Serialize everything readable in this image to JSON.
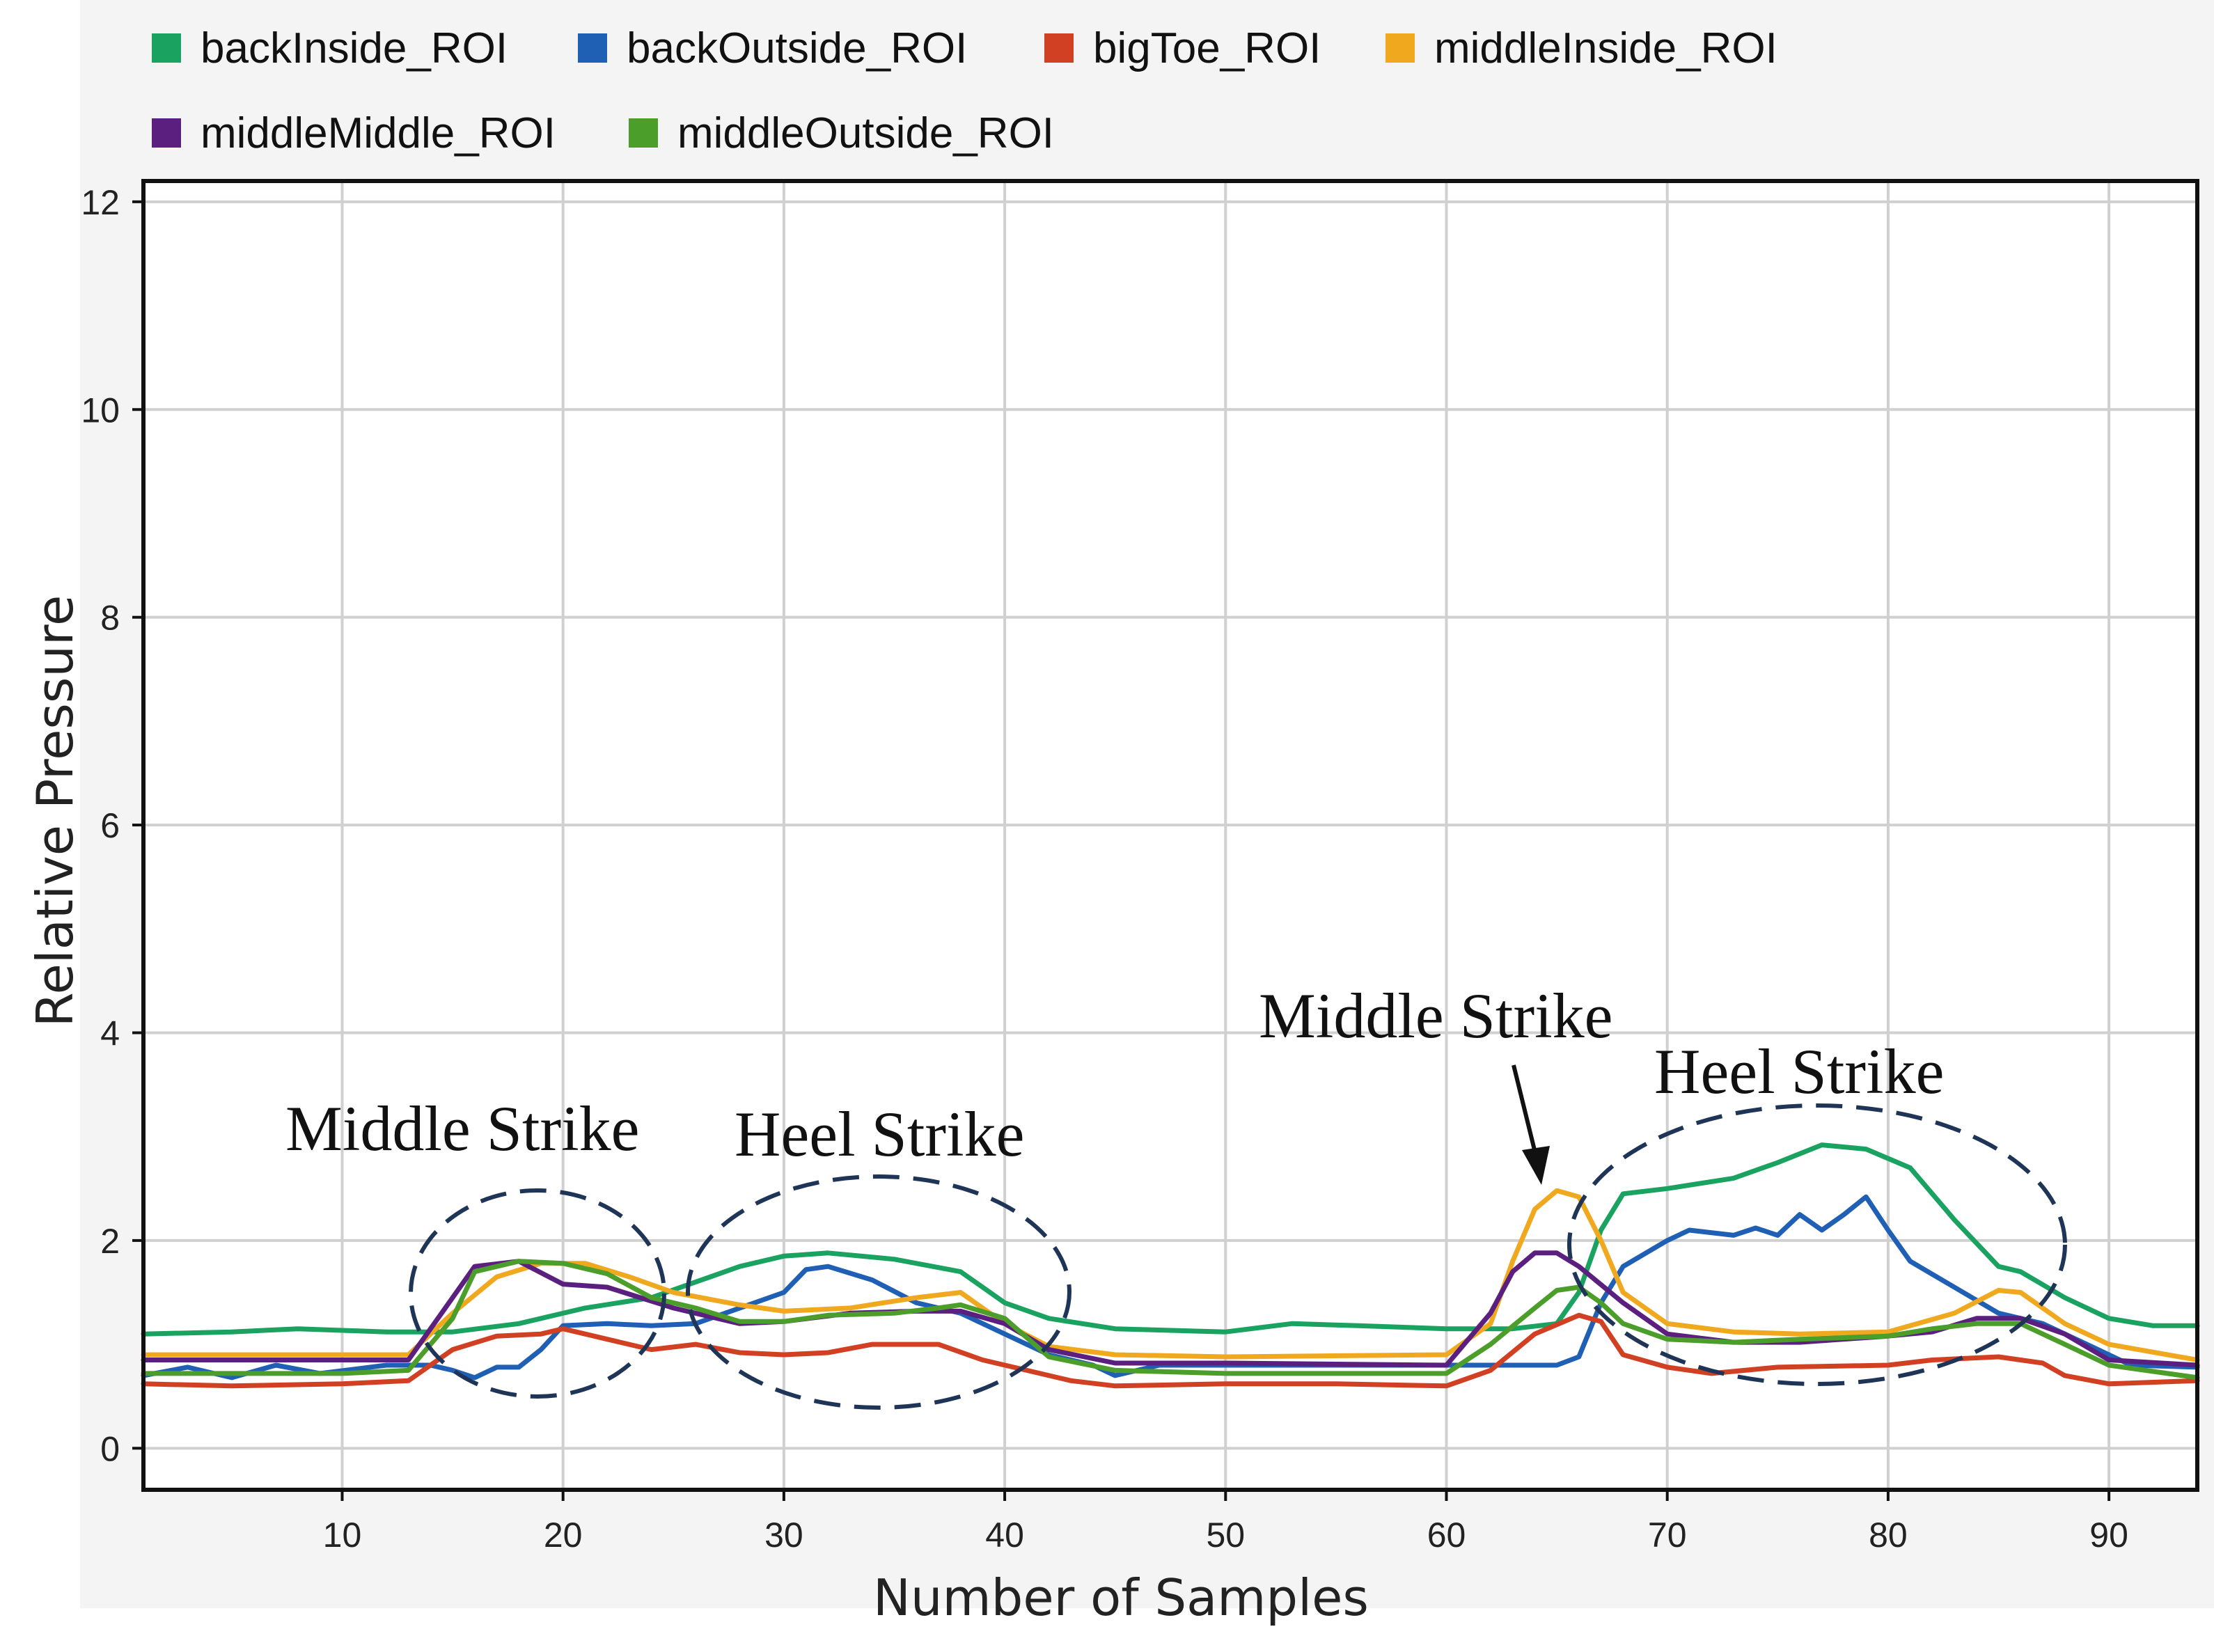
{
  "chart_data": {
    "type": "line",
    "title": "",
    "xlabel": "Number of Samples",
    "ylabel": "Relative Pressure",
    "xlim": [
      1,
      94
    ],
    "ylim": [
      -0.4,
      12.2
    ],
    "xticks": [
      10,
      20,
      30,
      40,
      50,
      60,
      70,
      80,
      90
    ],
    "yticks": [
      0,
      2,
      4,
      6,
      8,
      10,
      12
    ],
    "xtick_labels": [
      "10",
      "20",
      "30",
      "40",
      "50",
      "60",
      "70",
      "80",
      "90"
    ],
    "ytick_labels": [
      "0",
      "2",
      "4",
      "6",
      "8",
      "10",
      "12"
    ],
    "grid": true,
    "legend_position": "top",
    "series": [
      {
        "name": "backInside_ROI",
        "color": "#1aa260",
        "points": [
          [
            1,
            1.1
          ],
          [
            5,
            1.12
          ],
          [
            8,
            1.15
          ],
          [
            12,
            1.12
          ],
          [
            15,
            1.12
          ],
          [
            18,
            1.2
          ],
          [
            21,
            1.35
          ],
          [
            24,
            1.45
          ],
          [
            26,
            1.6
          ],
          [
            28,
            1.75
          ],
          [
            30,
            1.85
          ],
          [
            32,
            1.88
          ],
          [
            35,
            1.82
          ],
          [
            38,
            1.7
          ],
          [
            40,
            1.4
          ],
          [
            42,
            1.25
          ],
          [
            45,
            1.15
          ],
          [
            50,
            1.12
          ],
          [
            53,
            1.2
          ],
          [
            56,
            1.18
          ],
          [
            60,
            1.15
          ],
          [
            63,
            1.15
          ],
          [
            65,
            1.2
          ],
          [
            66,
            1.5
          ],
          [
            67,
            2.1
          ],
          [
            68,
            2.45
          ],
          [
            70,
            2.5
          ],
          [
            73,
            2.6
          ],
          [
            75,
            2.75
          ],
          [
            77,
            2.92
          ],
          [
            79,
            2.88
          ],
          [
            81,
            2.7
          ],
          [
            83,
            2.2
          ],
          [
            85,
            1.75
          ],
          [
            86,
            1.7
          ],
          [
            88,
            1.45
          ],
          [
            90,
            1.25
          ],
          [
            92,
            1.18
          ],
          [
            94,
            1.18
          ]
        ]
      },
      {
        "name": "backOutside_ROI",
        "color": "#1f5fb4",
        "points": [
          [
            1,
            0.7
          ],
          [
            3,
            0.78
          ],
          [
            5,
            0.68
          ],
          [
            7,
            0.8
          ],
          [
            9,
            0.72
          ],
          [
            12,
            0.8
          ],
          [
            14,
            0.8
          ],
          [
            15,
            0.75
          ],
          [
            16,
            0.68
          ],
          [
            17,
            0.78
          ],
          [
            18,
            0.78
          ],
          [
            19,
            0.95
          ],
          [
            20,
            1.18
          ],
          [
            22,
            1.2
          ],
          [
            24,
            1.18
          ],
          [
            26,
            1.2
          ],
          [
            28,
            1.35
          ],
          [
            30,
            1.5
          ],
          [
            31,
            1.72
          ],
          [
            32,
            1.75
          ],
          [
            34,
            1.62
          ],
          [
            36,
            1.4
          ],
          [
            38,
            1.3
          ],
          [
            40,
            1.1
          ],
          [
            42,
            0.9
          ],
          [
            44,
            0.8
          ],
          [
            45,
            0.7
          ],
          [
            47,
            0.8
          ],
          [
            55,
            0.8
          ],
          [
            60,
            0.8
          ],
          [
            63,
            0.8
          ],
          [
            65,
            0.8
          ],
          [
            66,
            0.88
          ],
          [
            67,
            1.4
          ],
          [
            68,
            1.75
          ],
          [
            70,
            2.0
          ],
          [
            71,
            2.1
          ],
          [
            73,
            2.05
          ],
          [
            74,
            2.12
          ],
          [
            75,
            2.05
          ],
          [
            76,
            2.25
          ],
          [
            77,
            2.1
          ],
          [
            78,
            2.25
          ],
          [
            79,
            2.42
          ],
          [
            80,
            2.1
          ],
          [
            81,
            1.8
          ],
          [
            83,
            1.55
          ],
          [
            85,
            1.3
          ],
          [
            87,
            1.2
          ],
          [
            89,
            1.0
          ],
          [
            91,
            0.8
          ],
          [
            94,
            0.78
          ]
        ]
      },
      {
        "name": "bigToe_ROI",
        "color": "#d14022",
        "points": [
          [
            1,
            0.62
          ],
          [
            5,
            0.6
          ],
          [
            10,
            0.62
          ],
          [
            13,
            0.65
          ],
          [
            15,
            0.95
          ],
          [
            17,
            1.08
          ],
          [
            19,
            1.1
          ],
          [
            20,
            1.15
          ],
          [
            22,
            1.05
          ],
          [
            24,
            0.95
          ],
          [
            26,
            1.0
          ],
          [
            28,
            0.92
          ],
          [
            30,
            0.9
          ],
          [
            32,
            0.92
          ],
          [
            34,
            1.0
          ],
          [
            37,
            1.0
          ],
          [
            39,
            0.85
          ],
          [
            41,
            0.75
          ],
          [
            43,
            0.65
          ],
          [
            45,
            0.6
          ],
          [
            50,
            0.62
          ],
          [
            55,
            0.62
          ],
          [
            60,
            0.6
          ],
          [
            62,
            0.75
          ],
          [
            64,
            1.1
          ],
          [
            66,
            1.28
          ],
          [
            67,
            1.22
          ],
          [
            68,
            0.9
          ],
          [
            70,
            0.78
          ],
          [
            72,
            0.72
          ],
          [
            75,
            0.78
          ],
          [
            80,
            0.8
          ],
          [
            82,
            0.85
          ],
          [
            85,
            0.88
          ],
          [
            87,
            0.82
          ],
          [
            88,
            0.7
          ],
          [
            90,
            0.62
          ],
          [
            94,
            0.65
          ]
        ]
      },
      {
        "name": "middleInside_ROI",
        "color": "#f0a91f",
        "points": [
          [
            1,
            0.9
          ],
          [
            10,
            0.9
          ],
          [
            13,
            0.9
          ],
          [
            15,
            1.3
          ],
          [
            17,
            1.65
          ],
          [
            19,
            1.78
          ],
          [
            21,
            1.78
          ],
          [
            23,
            1.65
          ],
          [
            25,
            1.5
          ],
          [
            28,
            1.38
          ],
          [
            30,
            1.32
          ],
          [
            33,
            1.35
          ],
          [
            36,
            1.45
          ],
          [
            38,
            1.5
          ],
          [
            40,
            1.2
          ],
          [
            42,
            0.98
          ],
          [
            45,
            0.9
          ],
          [
            50,
            0.88
          ],
          [
            60,
            0.9
          ],
          [
            62,
            1.2
          ],
          [
            63,
            1.8
          ],
          [
            64,
            2.3
          ],
          [
            65,
            2.48
          ],
          [
            66,
            2.42
          ],
          [
            67,
            2.0
          ],
          [
            68,
            1.5
          ],
          [
            70,
            1.2
          ],
          [
            73,
            1.12
          ],
          [
            76,
            1.1
          ],
          [
            80,
            1.12
          ],
          [
            83,
            1.3
          ],
          [
            85,
            1.52
          ],
          [
            86,
            1.5
          ],
          [
            88,
            1.2
          ],
          [
            90,
            1.0
          ],
          [
            94,
            0.85
          ]
        ]
      },
      {
        "name": "middleMiddle_ROI",
        "color": "#5b1f80",
        "points": [
          [
            1,
            0.85
          ],
          [
            10,
            0.85
          ],
          [
            13,
            0.85
          ],
          [
            15,
            1.45
          ],
          [
            16,
            1.75
          ],
          [
            18,
            1.8
          ],
          [
            20,
            1.58
          ],
          [
            22,
            1.55
          ],
          [
            25,
            1.35
          ],
          [
            28,
            1.2
          ],
          [
            30,
            1.22
          ],
          [
            33,
            1.3
          ],
          [
            36,
            1.32
          ],
          [
            38,
            1.32
          ],
          [
            40,
            1.2
          ],
          [
            42,
            0.95
          ],
          [
            45,
            0.82
          ],
          [
            50,
            0.82
          ],
          [
            60,
            0.8
          ],
          [
            62,
            1.3
          ],
          [
            63,
            1.7
          ],
          [
            64,
            1.88
          ],
          [
            65,
            1.88
          ],
          [
            66,
            1.75
          ],
          [
            68,
            1.4
          ],
          [
            70,
            1.1
          ],
          [
            73,
            1.02
          ],
          [
            76,
            1.02
          ],
          [
            80,
            1.08
          ],
          [
            82,
            1.12
          ],
          [
            84,
            1.25
          ],
          [
            86,
            1.25
          ],
          [
            88,
            1.1
          ],
          [
            90,
            0.85
          ],
          [
            94,
            0.8
          ]
        ]
      },
      {
        "name": "middleOutside_ROI",
        "color": "#4c9e2a",
        "points": [
          [
            1,
            0.72
          ],
          [
            10,
            0.72
          ],
          [
            13,
            0.75
          ],
          [
            15,
            1.25
          ],
          [
            16,
            1.7
          ],
          [
            18,
            1.8
          ],
          [
            20,
            1.78
          ],
          [
            22,
            1.68
          ],
          [
            24,
            1.45
          ],
          [
            26,
            1.35
          ],
          [
            28,
            1.22
          ],
          [
            30,
            1.22
          ],
          [
            32,
            1.28
          ],
          [
            35,
            1.3
          ],
          [
            37,
            1.35
          ],
          [
            38,
            1.38
          ],
          [
            40,
            1.25
          ],
          [
            42,
            0.88
          ],
          [
            45,
            0.75
          ],
          [
            50,
            0.72
          ],
          [
            60,
            0.72
          ],
          [
            62,
            1.0
          ],
          [
            64,
            1.35
          ],
          [
            65,
            1.52
          ],
          [
            66,
            1.55
          ],
          [
            67,
            1.4
          ],
          [
            68,
            1.2
          ],
          [
            70,
            1.05
          ],
          [
            73,
            1.02
          ],
          [
            76,
            1.05
          ],
          [
            80,
            1.08
          ],
          [
            82,
            1.15
          ],
          [
            84,
            1.2
          ],
          [
            86,
            1.2
          ],
          [
            88,
            1.0
          ],
          [
            90,
            0.8
          ],
          [
            94,
            0.68
          ]
        ]
      }
    ],
    "annotations": [
      {
        "name": "middle-strike-1",
        "text": "Middle Strike"
      },
      {
        "name": "heel-strike-1",
        "text": "Heel Strike"
      },
      {
        "name": "middle-strike-2",
        "text": "Middle Strike"
      },
      {
        "name": "heel-strike-2",
        "text": "Heel Strike"
      }
    ]
  }
}
